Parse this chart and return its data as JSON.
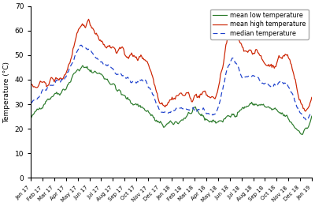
{
  "title": "",
  "ylabel": "Temperature (°C)",
  "xlabel": "",
  "ylim": [
    0,
    70
  ],
  "yticks": [
    0,
    10,
    20,
    30,
    40,
    50,
    60,
    70
  ],
  "line_low_color": "#2a7a2a",
  "line_high_color": "#cc2200",
  "line_median_color": "#1a3ecc",
  "legend_labels": [
    "mean low temperature",
    "mean high temperature",
    "median temperature"
  ],
  "x_tick_labels": [
    "Jan 17",
    "Feb 17",
    "Mar 17",
    "Apr 17",
    "May 17",
    "Jun 17",
    "Jul 17",
    "Aug 17",
    "Sep 17",
    "Oct 17",
    "Nov 17",
    "Dec 17",
    "Jan 18",
    "Feb 18",
    "Mar 18",
    "Apr 18",
    "May 18",
    "Jun 18",
    "Jul 18",
    "Aug 18",
    "Sep 18",
    "Oct 18",
    "Nov 18",
    "Dec 18",
    "Jan 19"
  ],
  "low_monthly": [
    24,
    30,
    34,
    37,
    44,
    44,
    42,
    38,
    33,
    30,
    27,
    22,
    22,
    24,
    27,
    24,
    23,
    25,
    28,
    30,
    29,
    27,
    24,
    19,
    25
  ],
  "high_monthly": [
    37,
    38,
    40,
    43,
    58,
    63,
    56,
    53,
    51,
    49,
    47,
    32,
    32,
    34,
    33,
    34,
    36,
    60,
    54,
    52,
    47,
    47,
    49,
    32,
    34
  ],
  "med_monthly": [
    31,
    35,
    39,
    41,
    52,
    52,
    47,
    44,
    41,
    39,
    38,
    27,
    27,
    28,
    28,
    27,
    28,
    48,
    42,
    41,
    38,
    38,
    37,
    27,
    27
  ]
}
